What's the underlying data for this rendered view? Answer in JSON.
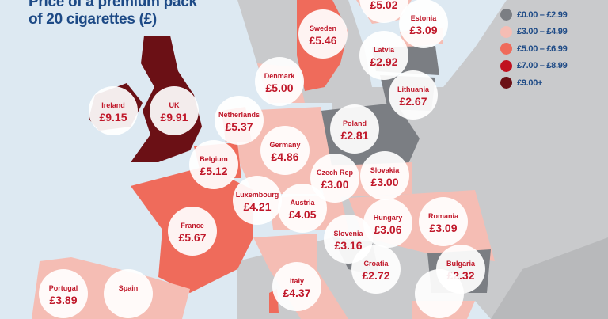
{
  "title": {
    "line1": "Price of a premium pack",
    "line2": "of 20 cigarettes (£)"
  },
  "legend": [
    {
      "label": "£0.00 – £2.99",
      "color": "#7b7e83"
    },
    {
      "label": "£3.00 – £4.99",
      "color": "#f5bdb4"
    },
    {
      "label": "£5.00 – £6.99",
      "color": "#ef6b5b"
    },
    {
      "label": "£7.00 – £8.99",
      "color": "#c0111f"
    },
    {
      "label": "£9.00+",
      "color": "#6b1015"
    }
  ],
  "countries": [
    {
      "name": "",
      "price": "£5.02"
    },
    {
      "name": "Sweden",
      "price": "£5.46"
    },
    {
      "name": "Estonia",
      "price": "£3.09"
    },
    {
      "name": "Latvia",
      "price": "£2.92"
    },
    {
      "name": "Denmark",
      "price": "£5.00"
    },
    {
      "name": "Lithuania",
      "price": "£2.67"
    },
    {
      "name": "Ireland",
      "price": "£9.15"
    },
    {
      "name": "UK",
      "price": "£9.91"
    },
    {
      "name": "Netherlands",
      "price": "£5.37"
    },
    {
      "name": "Poland",
      "price": "£2.81"
    },
    {
      "name": "Germany",
      "price": "£4.86"
    },
    {
      "name": "Belgium",
      "price": "£5.12"
    },
    {
      "name": "Czech Rep",
      "price": "£3.00"
    },
    {
      "name": "Slovakia",
      "price": "£3.00"
    },
    {
      "name": "Luxembourg",
      "price": "£4.21"
    },
    {
      "name": "Austria",
      "price": "£4.05"
    },
    {
      "name": "Hungary",
      "price": "£3.06"
    },
    {
      "name": "Romania",
      "price": "£3.09"
    },
    {
      "name": "France",
      "price": "£5.67"
    },
    {
      "name": "Slovenia",
      "price": "£3.16"
    },
    {
      "name": "Croatia",
      "price": "£2.72"
    },
    {
      "name": "Bulgaria",
      "price": "£2.32"
    },
    {
      "name": "Italy",
      "price": "£4.37"
    },
    {
      "name": "Portugal",
      "price": "£3.89"
    },
    {
      "name": "Spain",
      "price": ""
    },
    {
      "name": "",
      "price": ""
    }
  ]
}
